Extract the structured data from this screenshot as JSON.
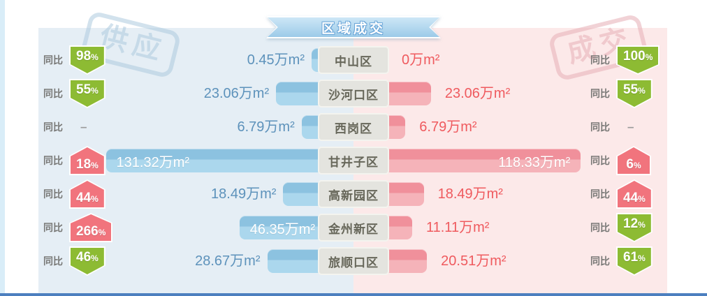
{
  "title_ribbon": "区域成交",
  "labels": {
    "yoy": "同比"
  },
  "watermarks": {
    "left": "供应",
    "right": "成交"
  },
  "colors": {
    "panel_left": "#e5eef5",
    "panel_right": "#fce9e9",
    "bar_blue_top": "#8cc2e0",
    "bar_blue_bottom": "#abd7ed",
    "bar_pink_top": "#f0909b",
    "bar_pink_bottom": "#f5b3b9",
    "value_blue": "#5d92bb",
    "value_pink": "#ef5a5e",
    "box_bg": "#e4e4df",
    "box_text": "#67675a",
    "badge_down": "#8dbb33",
    "badge_up": "#f1747d",
    "ribbon_top": "#cde6f6",
    "ribbon_bottom": "#9ccae8",
    "stamp_blue": "#aecbdf",
    "stamp_pink": "#e9b7bd",
    "line_bottom": "#4c7fbf"
  },
  "chart_data": {
    "type": "bar",
    "variant": "tornado",
    "title": "区域成交",
    "unit": "万m²",
    "categories": [
      "中山区",
      "沙河口区",
      "西岗区",
      "甘井子区",
      "高新园区",
      "金州新区",
      "旅顺口区"
    ],
    "series": [
      {
        "name": "供应",
        "side": "left",
        "values": [
          0.45,
          23.06,
          6.79,
          131.32,
          18.49,
          46.35,
          28.67
        ],
        "value_labels": [
          "0.45万m²",
          "23.06万m²",
          "6.79万m²",
          "131.32万m²",
          "18.49万m²",
          "46.35万m²",
          "28.67万m²"
        ],
        "yoy": [
          {
            "value": "98",
            "suffix": "%",
            "dir": "down"
          },
          {
            "value": "55",
            "suffix": "%",
            "dir": "down"
          },
          {
            "value": "–",
            "suffix": "",
            "dir": "none"
          },
          {
            "value": "18",
            "suffix": "%",
            "dir": "up"
          },
          {
            "value": "44",
            "suffix": "%",
            "dir": "up"
          },
          {
            "value": "266",
            "suffix": "%",
            "dir": "up"
          },
          {
            "value": "46",
            "suffix": "%",
            "dir": "down"
          }
        ]
      },
      {
        "name": "成交",
        "side": "right",
        "values": [
          0,
          23.06,
          6.79,
          118.33,
          18.49,
          11.11,
          20.51
        ],
        "value_labels": [
          "0万m²",
          "23.06万m²",
          "6.79万m²",
          "118.33万m²",
          "18.49万m²",
          "11.11万m²",
          "20.51万m²"
        ],
        "yoy": [
          {
            "value": "100",
            "suffix": "%",
            "dir": "down"
          },
          {
            "value": "55",
            "suffix": "%",
            "dir": "down"
          },
          {
            "value": "–",
            "suffix": "",
            "dir": "none"
          },
          {
            "value": "6",
            "suffix": "%",
            "dir": "up"
          },
          {
            "value": "44",
            "suffix": "%",
            "dir": "up"
          },
          {
            "value": "12",
            "suffix": "%",
            "dir": "down"
          },
          {
            "value": "61",
            "suffix": "%",
            "dir": "down"
          }
        ]
      }
    ],
    "legend_position": "none",
    "grid": false
  }
}
